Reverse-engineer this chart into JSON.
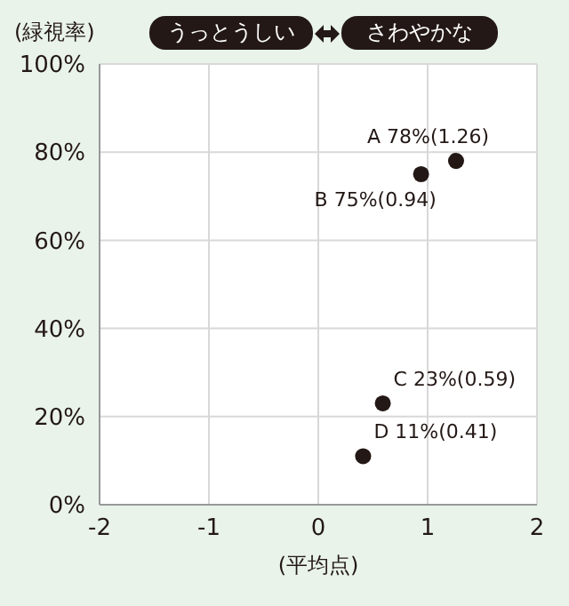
{
  "chart_data": {
    "type": "scatter",
    "xlabel": "(平均点)",
    "ylabel": "(緑視率)",
    "series": [
      {
        "color": "#231815",
        "x": [
          1.26,
          0.94,
          0.59,
          0.41
        ],
        "values": [
          78,
          75,
          23,
          11
        ]
      }
    ],
    "xlim": [
      -2,
      2
    ],
    "xticks": [
      -2,
      -1,
      0,
      1,
      2
    ],
    "ylim": [
      0,
      100
    ],
    "yticks": [
      {
        "value": 0,
        "label": "0%"
      },
      {
        "value": 20,
        "label": "20%"
      },
      {
        "value": 40,
        "label": "40%"
      },
      {
        "value": 60,
        "label": "60%"
      },
      {
        "value": 80,
        "label": "80%"
      },
      {
        "value": 100,
        "label": "100%"
      }
    ],
    "grid": true,
    "legend": false,
    "marker": "circle",
    "annotations": [
      "うっとうしい",
      "さわやかな",
      {
        "text": "A 78%(1.26)",
        "x": 1.26,
        "y": 78
      },
      {
        "text": "B 75%(0.94)",
        "x": 0.94,
        "y": 75
      },
      {
        "text": "C 23%(0.59)",
        "x": 0.59,
        "y": 23
      },
      {
        "text": "D 11%(0.41)",
        "x": 0.41,
        "y": 11
      }
    ]
  }
}
